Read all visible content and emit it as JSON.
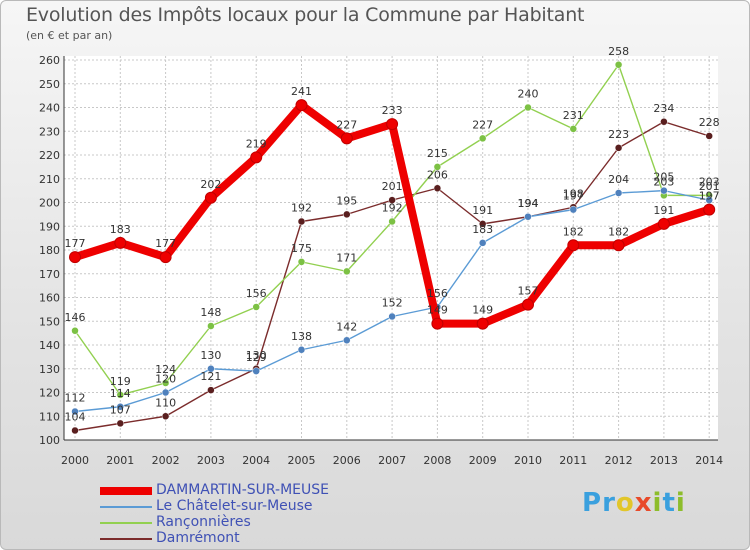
{
  "title": "Evolution des Impôts locaux pour la Commune par Habitant",
  "subtitle": "(en € et par an)",
  "brand": {
    "letters": [
      {
        "ch": "P",
        "color": "#3aa0de"
      },
      {
        "ch": "r",
        "color": "#3aa0de"
      },
      {
        "ch": "o",
        "color": "#e2c62a"
      },
      {
        "ch": "x",
        "color": "#e84a2a"
      },
      {
        "ch": "i",
        "color": "#8dbd2b"
      },
      {
        "ch": "t",
        "color": "#3aa0de"
      },
      {
        "ch": "i",
        "color": "#8dbd2b"
      }
    ]
  },
  "chart_data": {
    "type": "line",
    "categories": [
      "2000",
      "2001",
      "2002",
      "2003",
      "2004",
      "2005",
      "2006",
      "2007",
      "2008",
      "2009",
      "2010",
      "2011",
      "2012",
      "2013",
      "2014"
    ],
    "ylim": [
      100,
      260
    ],
    "yticks": [
      100,
      110,
      120,
      130,
      140,
      150,
      160,
      170,
      180,
      190,
      200,
      210,
      220,
      230,
      240,
      250,
      260
    ],
    "grid": true,
    "legend_position": "bottom-left",
    "series": [
      {
        "name": "DAMMARTIN-SUR-MEUSE",
        "color": "#ee0000",
        "values": [
          177,
          183,
          177,
          202,
          219,
          241,
          227,
          233,
          149,
          149,
          157,
          182,
          182,
          191,
          197
        ]
      },
      {
        "name": "Le Châtelet-sur-Meuse",
        "color": "#5b9bd5",
        "values": [
          112,
          114,
          120,
          130,
          129,
          138,
          142,
          152,
          156,
          183,
          194,
          197,
          204,
          205,
          201
        ]
      },
      {
        "name": "Rançonnières",
        "color": "#92d050",
        "values": [
          146,
          119,
          124,
          148,
          156,
          175,
          171,
          192,
          215,
          227,
          240,
          231,
          258,
          203,
          203
        ]
      },
      {
        "name": "Damrémont",
        "color": "#7b2c2c",
        "values": [
          104,
          107,
          110,
          121,
          130,
          192,
          195,
          201,
          206,
          191,
          194,
          198,
          223,
          234,
          228
        ]
      }
    ]
  }
}
